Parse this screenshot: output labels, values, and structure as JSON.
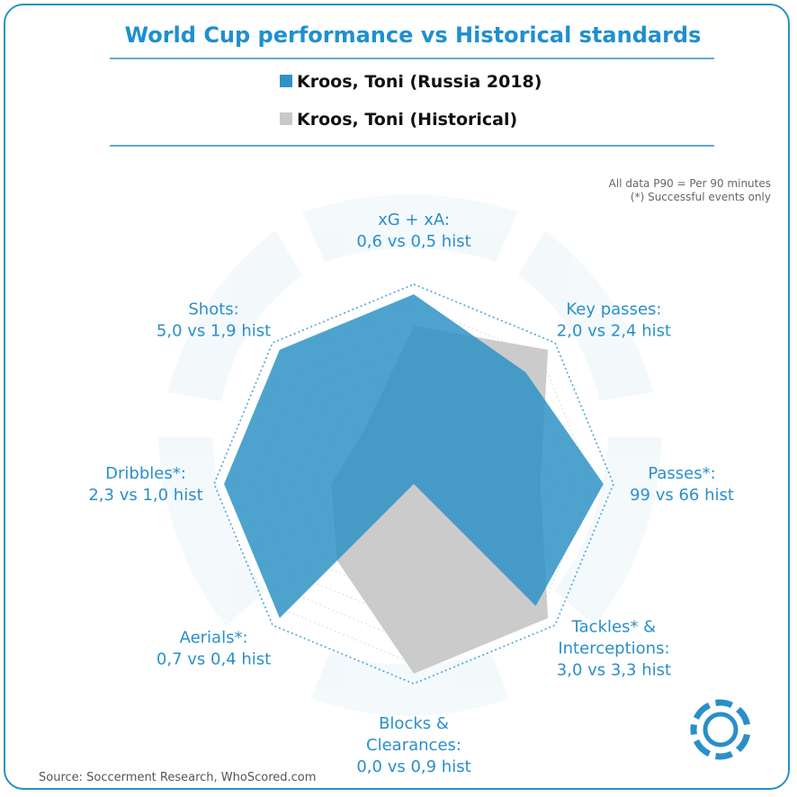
{
  "chart_data": {
    "type": "radar",
    "title": "World Cup performance vs Historical standards",
    "note_lines": [
      "All data P90 = Per 90 minutes",
      "(*) Successful events only"
    ],
    "source": "Source: Soccerment Research, WhoScored.com",
    "metrics": [
      {
        "label_lines": [
          "xG + xA:",
          "0,6 vs 0,5 hist"
        ],
        "current": 0.6,
        "historical": 0.5
      },
      {
        "label_lines": [
          "Key passes:",
          "2,0 vs 2,4 hist"
        ],
        "current": 2.0,
        "historical": 2.4
      },
      {
        "label_lines": [
          "Passes*:",
          "99 vs 66 hist"
        ],
        "current": 99,
        "historical": 66
      },
      {
        "label_lines": [
          "Tackles* &",
          "Interceptions:",
          "3,0 vs 3,3 hist"
        ],
        "current": 3.0,
        "historical": 3.3
      },
      {
        "label_lines": [
          "Blocks &",
          "Clearances:",
          "0,0 vs 0,9 hist"
        ],
        "current": 0.0,
        "historical": 0.9
      },
      {
        "label_lines": [
          "Aerials*:",
          "0,7 vs 0,4 hist"
        ],
        "current": 0.7,
        "historical": 0.4
      },
      {
        "label_lines": [
          "Dribbles*:",
          "2,3 vs 1,0 hist"
        ],
        "current": 2.3,
        "historical": 1.0
      },
      {
        "label_lines": [
          "Shots:",
          "5,0 vs 1,9 hist"
        ],
        "current": 5.0,
        "historical": 1.9
      }
    ],
    "series": [
      {
        "name": "Kroos, Toni (Russia 2018)",
        "color": "#2f93c6",
        "key": "current"
      },
      {
        "name": "Kroos, Toni (Historical)",
        "color": "#c8c8c8",
        "key": "historical"
      }
    ],
    "grid_rings": 10
  }
}
